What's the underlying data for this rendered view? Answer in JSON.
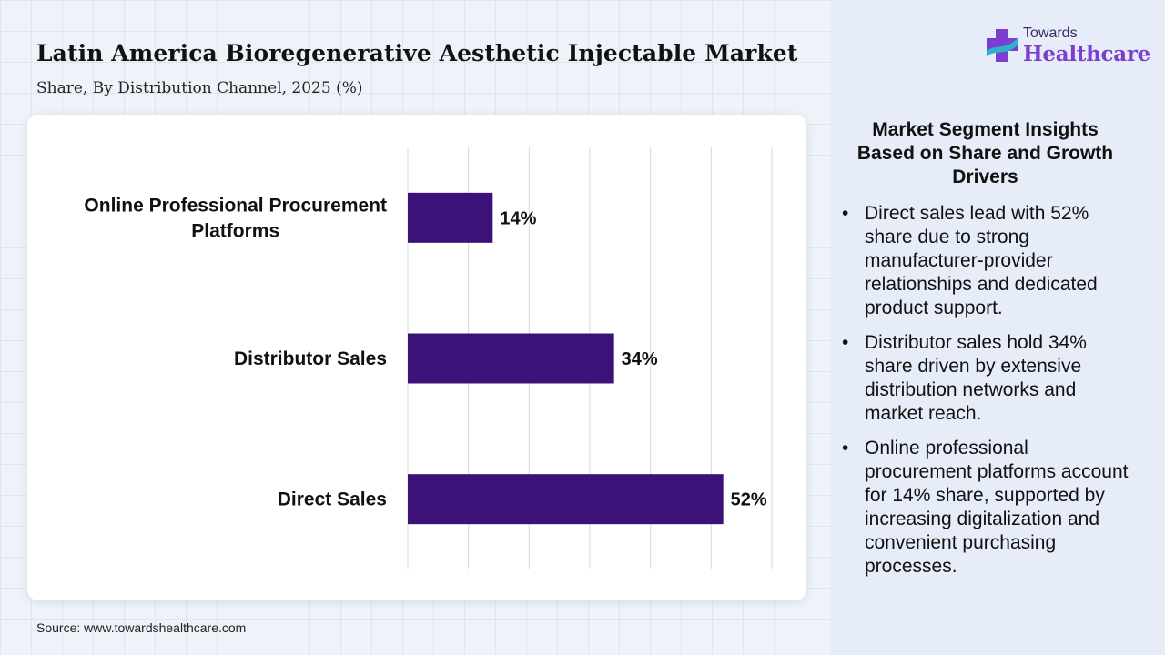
{
  "header": {
    "title": "Latin America Bioregenerative Aesthetic Injectable Market",
    "subtitle": "Share, By Distribution Channel, 2025 (%)"
  },
  "logo": {
    "top_text": "Towards",
    "main_text": "Healthcare",
    "accent_color": "#7b3fd0"
  },
  "chart_data": {
    "type": "bar",
    "orientation": "horizontal",
    "categories": [
      "Online Professional Procurement Platforms",
      "Distributor Sales",
      "Direct Sales"
    ],
    "category_lines": [
      [
        "Online Professional Procurement",
        "Platforms"
      ],
      [
        "Distributor Sales"
      ],
      [
        "Direct Sales"
      ]
    ],
    "values": [
      14,
      34,
      52
    ],
    "value_labels": [
      "14%",
      "34%",
      "52%"
    ],
    "xlim": [
      0,
      60
    ],
    "grid": true,
    "bar_color": "#3d1278"
  },
  "insights": {
    "title": "Market Segment Insights Based on Share and Growth Drivers",
    "bullet_symbol": "•",
    "items": [
      "Direct sales lead with 52% share due to strong manufacturer-provider relationships and dedicated product support.",
      "Distributor sales hold 34% share driven by extensive distribution networks and market reach.",
      "Online professional procurement platforms account for 14% share, supported by increasing digitalization and convenient purchasing processes."
    ]
  },
  "footer": {
    "source": "Source: www.towardshealthcare.com"
  }
}
